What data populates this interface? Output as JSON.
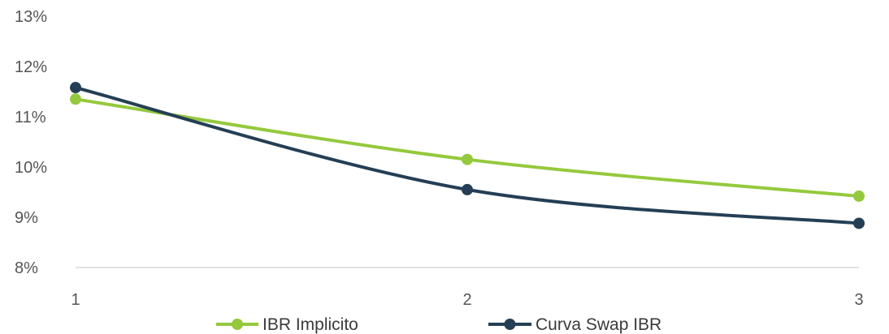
{
  "chart_data": {
    "type": "line",
    "x": [
      1,
      2,
      3
    ],
    "x_tick_labels": [
      "1",
      "2",
      "3"
    ],
    "ylim": [
      8,
      13
    ],
    "y_ticks": [
      8,
      9,
      10,
      11,
      12,
      13
    ],
    "y_tick_labels": [
      "8%",
      "9%",
      "10%",
      "11%",
      "12%",
      "13%"
    ],
    "grid": false,
    "legend_position": "bottom",
    "series": [
      {
        "name": "IBR Implicito",
        "color": "#95c93d",
        "values": [
          11.35,
          10.15,
          9.42
        ]
      },
      {
        "name": "Curva Swap IBR",
        "color": "#243f55",
        "values": [
          11.58,
          9.55,
          8.88
        ]
      }
    ]
  }
}
